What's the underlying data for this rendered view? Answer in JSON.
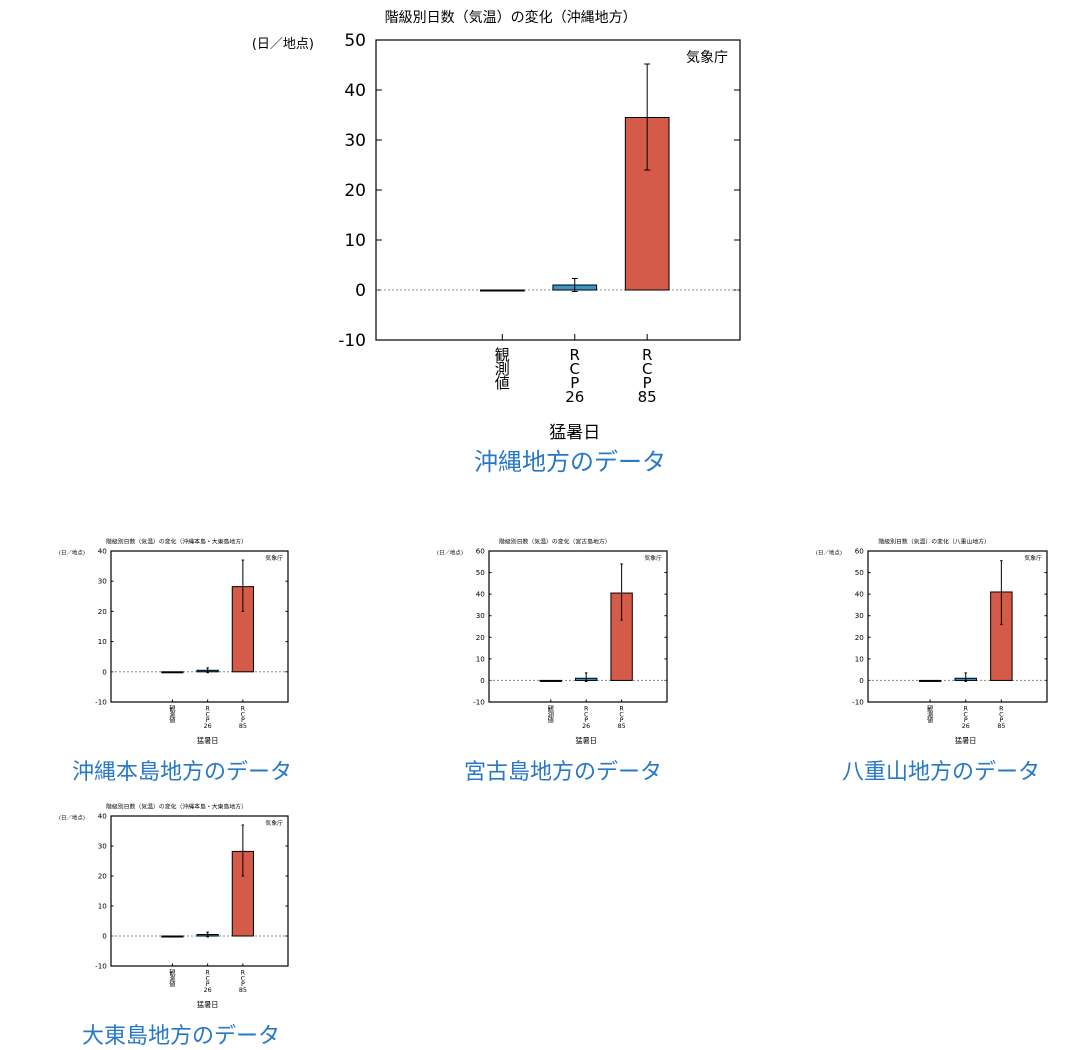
{
  "colors": {
    "observed": "#333333",
    "rcp26": "#3a94d0",
    "rcp85": "#d45b47",
    "link": "#2878c8"
  },
  "charts": {
    "okinawa": {
      "chart_data": {
        "type": "bar",
        "title": "階級別日数（気温）の変化（沖縄地方）",
        "ylabel": "(日／地点)",
        "agency": "気象庁",
        "xlabel": "猛暑日",
        "categories": [
          "観測値",
          "RCP26",
          "RCP85"
        ],
        "tick_chars": [
          [
            "観",
            "測",
            "値"
          ],
          [
            "R",
            "C",
            "P",
            "26"
          ],
          [
            "R",
            "C",
            "P",
            "85"
          ]
        ],
        "values": [
          0,
          1,
          34.5
        ],
        "err_low": [
          0,
          -0.3,
          24
        ],
        "err_high": [
          0,
          2.3,
          45.2
        ],
        "ylim": [
          -10,
          50
        ],
        "yticks": [
          -10,
          0,
          10,
          20,
          30,
          40,
          50
        ]
      },
      "link": "沖縄地方のデータ"
    },
    "okinawa_main": {
      "chart_data": {
        "type": "bar",
        "title": "階級別日数（気温）の変化（沖縄本島・大東島地方）",
        "ylabel": "(日／地点)",
        "agency": "気象庁",
        "xlabel": "猛暑日",
        "categories": [
          "観測値",
          "RCP26",
          "RCP85"
        ],
        "tick_chars": [
          [
            "観",
            "測",
            "値"
          ],
          [
            "R",
            "C",
            "P",
            "26"
          ],
          [
            "R",
            "C",
            "P",
            "85"
          ]
        ],
        "values": [
          0,
          0.5,
          28.2
        ],
        "err_low": [
          0,
          -0.3,
          20
        ],
        "err_high": [
          0,
          1.3,
          37
        ],
        "ylim": [
          -10,
          40
        ],
        "yticks": [
          -10,
          0,
          10,
          20,
          30,
          40
        ]
      },
      "link": "沖縄本島地方のデータ"
    },
    "miyako": {
      "chart_data": {
        "type": "bar",
        "title": "階級別日数（気温）の変化（宮古島地方）",
        "ylabel": "(日／地点)",
        "agency": "気象庁",
        "xlabel": "猛暑日",
        "categories": [
          "観測値",
          "RCP26",
          "RCP85"
        ],
        "tick_chars": [
          [
            "観",
            "測",
            "値"
          ],
          [
            "R",
            "C",
            "P",
            "26"
          ],
          [
            "R",
            "C",
            "P",
            "85"
          ]
        ],
        "values": [
          0,
          1,
          40.5
        ],
        "err_low": [
          0,
          -0.5,
          28
        ],
        "err_high": [
          0,
          3.5,
          54
        ],
        "ylim": [
          -10,
          60
        ],
        "yticks": [
          -10,
          0,
          10,
          20,
          30,
          40,
          50,
          60
        ]
      },
      "link": "宮古島地方のデータ"
    },
    "yaeyama": {
      "chart_data": {
        "type": "bar",
        "title": "階級別日数（気温）の変化（八重山地方）",
        "ylabel": "(日／地点)",
        "agency": "気象庁",
        "xlabel": "猛暑日",
        "categories": [
          "観測値",
          "RCP26",
          "RCP85"
        ],
        "tick_chars": [
          [
            "観",
            "測",
            "値"
          ],
          [
            "R",
            "C",
            "P",
            "26"
          ],
          [
            "R",
            "C",
            "P",
            "85"
          ]
        ],
        "values": [
          0,
          1,
          41
        ],
        "err_low": [
          0,
          -0.5,
          26
        ],
        "err_high": [
          0,
          3.5,
          55.5
        ],
        "ylim": [
          -10,
          60
        ],
        "yticks": [
          -10,
          0,
          10,
          20,
          30,
          40,
          50,
          60
        ]
      },
      "link": "八重山地方のデータ"
    },
    "daito": {
      "chart_data": {
        "type": "bar",
        "title": "階級別日数（気温）の変化（沖縄本島・大東島地方）",
        "ylabel": "(日／地点)",
        "agency": "気象庁",
        "xlabel": "猛暑日",
        "categories": [
          "観測値",
          "RCP26",
          "RCP85"
        ],
        "tick_chars": [
          [
            "観",
            "測",
            "値"
          ],
          [
            "R",
            "C",
            "P",
            "26"
          ],
          [
            "R",
            "C",
            "P",
            "85"
          ]
        ],
        "values": [
          0,
          0.5,
          28.2
        ],
        "err_low": [
          0,
          -0.3,
          20
        ],
        "err_high": [
          0,
          1.3,
          37
        ],
        "ylim": [
          -10,
          40
        ],
        "yticks": [
          -10,
          0,
          10,
          20,
          30,
          40
        ]
      },
      "link": "大東島地方のデータ"
    }
  }
}
